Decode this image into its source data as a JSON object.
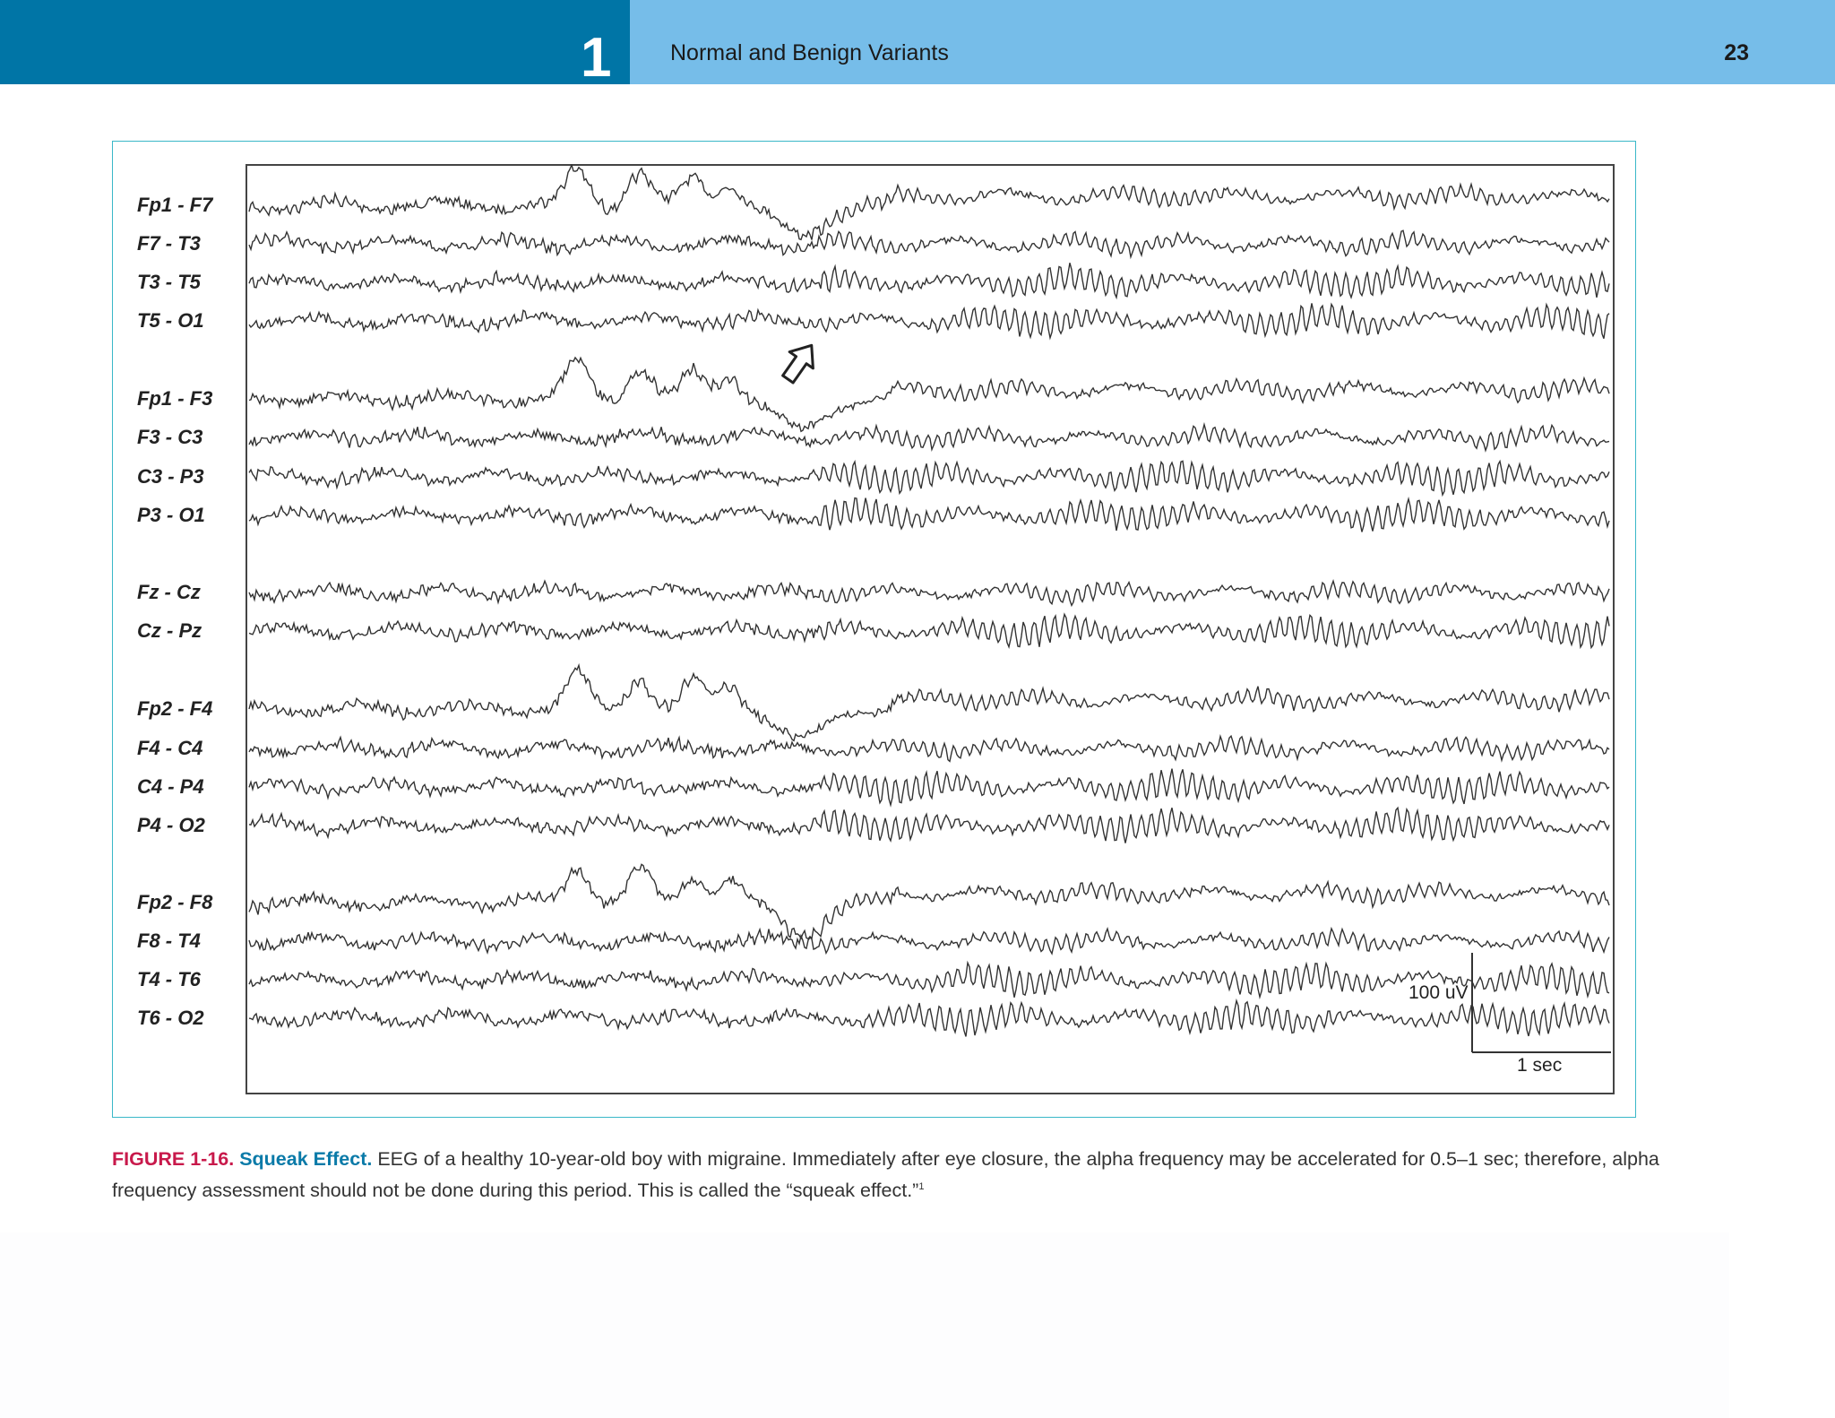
{
  "header": {
    "chapter_number": "1",
    "chapter_title": "Normal and Benign Variants",
    "page_number": "23",
    "colors": {
      "dark": "#0075a6",
      "light": "#76bde9"
    }
  },
  "figure": {
    "channels": [
      "Fp1 - F7",
      "F7 - T3",
      "T3 - T5",
      "T5 - O1",
      "Fp1 - F3",
      "F3 - C3",
      "C3 - P3",
      "P3 - O1",
      "Fz - Cz",
      "Cz - Pz",
      "Fp2 - F4",
      "F4 - C4",
      "C4 - P4",
      "P4 - O2",
      "Fp2 - F8",
      "F8 - T4",
      "T4 - T6",
      "T6 - O2"
    ],
    "calibration": {
      "amplitude": "100 uV",
      "time": "1 sec"
    },
    "arrow_icon": "outlined-arrow-up-left"
  },
  "caption": {
    "number": "FIGURE 1-16.",
    "title": "Squeak Effect.",
    "text": "EEG of a healthy 10-year-old boy with migraine. Immediately after eye closure, the alpha frequency may be accelerated for 0.5–1 sec; therefore, alpha frequency assessment should not be done during this period. This is called the “squeak effect.”",
    "footnote": "1"
  }
}
